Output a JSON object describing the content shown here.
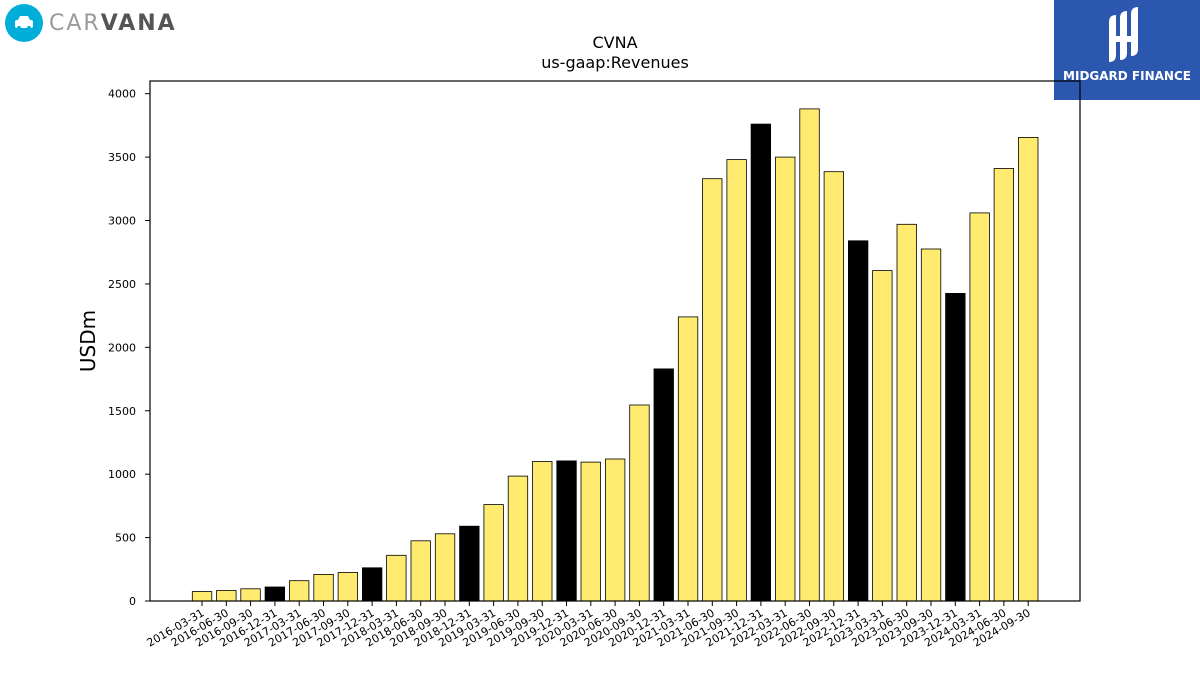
{
  "brand_left": {
    "text_light": "CAR",
    "text_bold": "VANA",
    "icon": "car-icon"
  },
  "brand_right": {
    "text": "MIDGARD FINANCE",
    "icon": "midgard-logo-icon"
  },
  "colors": {
    "bar_fill": "#ffeb70",
    "bar_highlight": "#000000",
    "bar_stroke": "#000000",
    "brand_blue": "#2b57ae",
    "badge_blue": "#00aed9"
  },
  "chart_data": {
    "type": "bar",
    "title": "CVNA",
    "subtitle": "us-gaap:Revenues",
    "xlabel": "",
    "ylabel": "USDm",
    "ylim": [
      0,
      4100
    ],
    "yticks": [
      0,
      500,
      1000,
      1500,
      2000,
      2500,
      3000,
      3500,
      4000
    ],
    "grid": false,
    "categories": [
      "2016-03-31",
      "2016-06-30",
      "2016-09-30",
      "2016-12-31",
      "2017-03-31",
      "2017-06-30",
      "2017-09-30",
      "2017-12-31",
      "2018-03-31",
      "2018-06-30",
      "2018-09-30",
      "2018-12-31",
      "2019-03-31",
      "2019-06-30",
      "2019-09-30",
      "2019-12-31",
      "2020-03-31",
      "2020-06-30",
      "2020-09-30",
      "2020-12-31",
      "2021-03-31",
      "2021-06-30",
      "2021-09-30",
      "2021-12-31",
      "2022-03-31",
      "2022-06-30",
      "2022-09-30",
      "2022-12-31",
      "2023-03-31",
      "2023-06-30",
      "2023-09-30",
      "2023-12-31",
      "2024-03-31",
      "2024-06-30",
      "2024-09-30"
    ],
    "values": [
      75,
      83,
      96,
      110,
      160,
      210,
      225,
      262,
      360,
      475,
      530,
      590,
      760,
      985,
      1100,
      1105,
      1095,
      1120,
      1545,
      1830,
      2240,
      3330,
      3480,
      3760,
      3500,
      3880,
      3385,
      2840,
      2605,
      2970,
      2775,
      2425,
      3060,
      3410,
      3655
    ],
    "highlighted": [
      "2016-12-31",
      "2017-12-31",
      "2018-12-31",
      "2019-12-31",
      "2020-12-31",
      "2021-12-31",
      "2022-12-31",
      "2023-12-31"
    ]
  }
}
